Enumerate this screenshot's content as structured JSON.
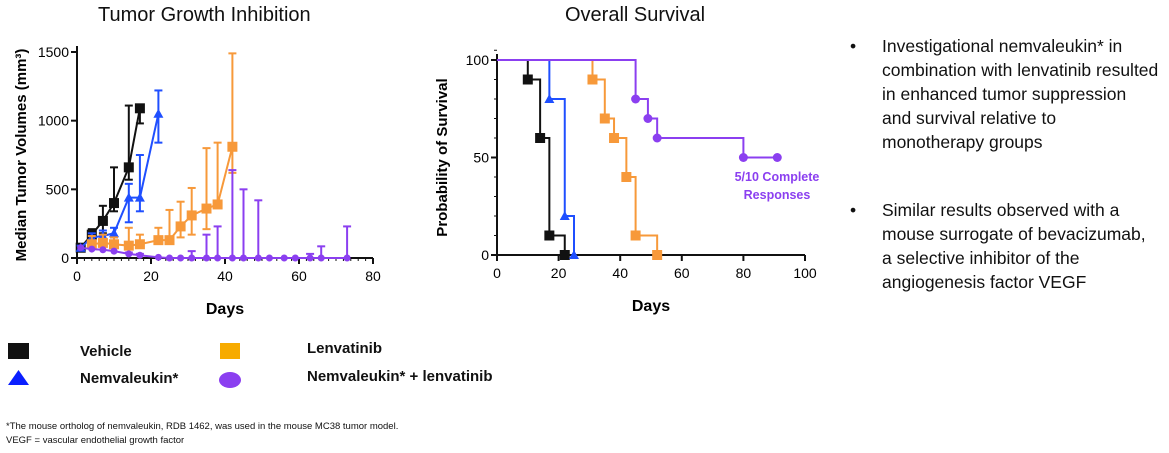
{
  "colors": {
    "vehicle": "#111111",
    "nemvaleukin": "#1f4fff",
    "lenvatinib": "#f7993a",
    "combo": "#8b3ff0"
  },
  "chart_data": [
    {
      "type": "line",
      "title": "Tumor Growth Inhibition",
      "xlabel": "Days",
      "ylabel": "Median Tumor Volumes (mm³)",
      "xlim": [
        0,
        80
      ],
      "ylim": [
        0,
        1500
      ],
      "xticks": [
        "0",
        "20",
        "40",
        "60",
        "80"
      ],
      "yticks": [
        "0",
        "500",
        "1000",
        "1500"
      ],
      "series": [
        {
          "name": "Vehicle",
          "key": "vehicle",
          "marker": "square",
          "x": [
            1,
            4,
            7,
            10,
            14,
            17
          ],
          "y": [
            75,
            170,
            270,
            400,
            660,
            1090
          ],
          "err_upper": [
            90,
            210,
            380,
            660,
            1110,
            1100
          ],
          "err_lower": [
            75,
            130,
            180,
            340,
            570,
            980
          ]
        },
        {
          "name": "Nemvaleukin*",
          "key": "nemvaleukin",
          "marker": "triangle",
          "x": [
            1,
            4,
            7,
            10,
            14,
            17,
            22
          ],
          "y": [
            75,
            150,
            160,
            180,
            440,
            440,
            1050
          ],
          "err_upper": [
            90,
            180,
            200,
            220,
            540,
            750,
            1220
          ],
          "err_lower": [
            75,
            120,
            130,
            150,
            260,
            340,
            840
          ]
        },
        {
          "name": "Lenvatinib",
          "key": "lenvatinib",
          "marker": "square",
          "x": [
            4,
            7,
            10,
            14,
            17,
            22,
            25,
            28,
            31,
            35,
            38,
            42
          ],
          "y": [
            100,
            110,
            100,
            90,
            100,
            130,
            130,
            230,
            310,
            360,
            390,
            810
          ],
          "err_upper": [
            160,
            170,
            150,
            220,
            170,
            220,
            350,
            410,
            510,
            800,
            840,
            1490
          ],
          "err_lower": [
            90,
            90,
            80,
            70,
            80,
            110,
            110,
            150,
            170,
            210,
            390,
            620
          ]
        },
        {
          "name": "Nemvaleukin* + lenvatinib",
          "key": "combo",
          "marker": "circle",
          "x": [
            1,
            4,
            7,
            10,
            14,
            17,
            22,
            25,
            28,
            31,
            35,
            38,
            42,
            45,
            49,
            52,
            56,
            59,
            63,
            66,
            73
          ],
          "y": [
            75,
            65,
            60,
            50,
            30,
            20,
            5,
            0,
            0,
            0,
            0,
            0,
            0,
            0,
            0,
            0,
            0,
            0,
            0,
            0,
            0
          ],
          "err_upper": [
            75,
            65,
            60,
            50,
            40,
            30,
            10,
            0,
            0,
            50,
            170,
            230,
            640,
            500,
            420,
            0,
            0,
            0,
            30,
            85,
            230
          ],
          "err_lower": [
            75,
            65,
            60,
            50,
            30,
            20,
            5,
            0,
            0,
            0,
            0,
            0,
            0,
            0,
            0,
            0,
            0,
            0,
            0,
            0,
            0
          ]
        }
      ]
    },
    {
      "type": "line",
      "subtype": "kaplan-meier",
      "title": "Overall Survival",
      "xlabel": "Days",
      "ylabel": "Probability of Survival",
      "xlim": [
        0,
        100
      ],
      "ylim": [
        0,
        100
      ],
      "xticks": [
        "0",
        "20",
        "40",
        "60",
        "80",
        "100"
      ],
      "yticks": [
        "0",
        "50",
        "100"
      ],
      "annotation": {
        "line1": "5/10 Complete",
        "line2": "Responses"
      },
      "series": [
        {
          "name": "Vehicle",
          "key": "vehicle",
          "marker": "square",
          "x": [
            10,
            14,
            17,
            22
          ],
          "y": [
            90,
            60,
            10,
            0
          ]
        },
        {
          "name": "Nemvaleukin*",
          "key": "nemvaleukin",
          "marker": "triangle",
          "x": [
            17,
            22,
            25
          ],
          "y": [
            80,
            20,
            0
          ]
        },
        {
          "name": "Lenvatinib",
          "key": "lenvatinib",
          "marker": "square",
          "x": [
            31,
            35,
            38,
            42,
            45,
            52
          ],
          "y": [
            90,
            70,
            60,
            40,
            10,
            0
          ]
        },
        {
          "name": "Nemvaleukin* + lenvatinib",
          "key": "combo",
          "marker": "circle",
          "x": [
            45,
            49,
            52,
            80,
            91
          ],
          "y": [
            80,
            70,
            60,
            50,
            50
          ]
        }
      ]
    }
  ],
  "legend": [
    {
      "label": "Vehicle",
      "key": "vehicle",
      "marker": "square"
    },
    {
      "label": "Lenvatinib",
      "key": "lenvatinib",
      "marker": "square"
    },
    {
      "label": "Nemvaleukin*",
      "key": "nemvaleukin",
      "marker": "triangle"
    },
    {
      "label": "Nemvaleukin* + lenvatinib",
      "key": "combo",
      "marker": "circle"
    }
  ],
  "bullets": [
    "Investigational nemvaleukin* in combination with lenvatinib resulted in enhanced tumor suppression and survival relative to monotherapy groups",
    "Similar results observed with a mouse surrogate of bevacizumab, a selective inhibitor of the angiogenesis factor VEGF"
  ],
  "bullet_glyph": "•",
  "footnotes": [
    "*The mouse ortholog of nemvaleukin, RDB 1462, was used in the mouse MC38 tumor model.",
    "VEGF = vascular endothelial growth factor"
  ]
}
